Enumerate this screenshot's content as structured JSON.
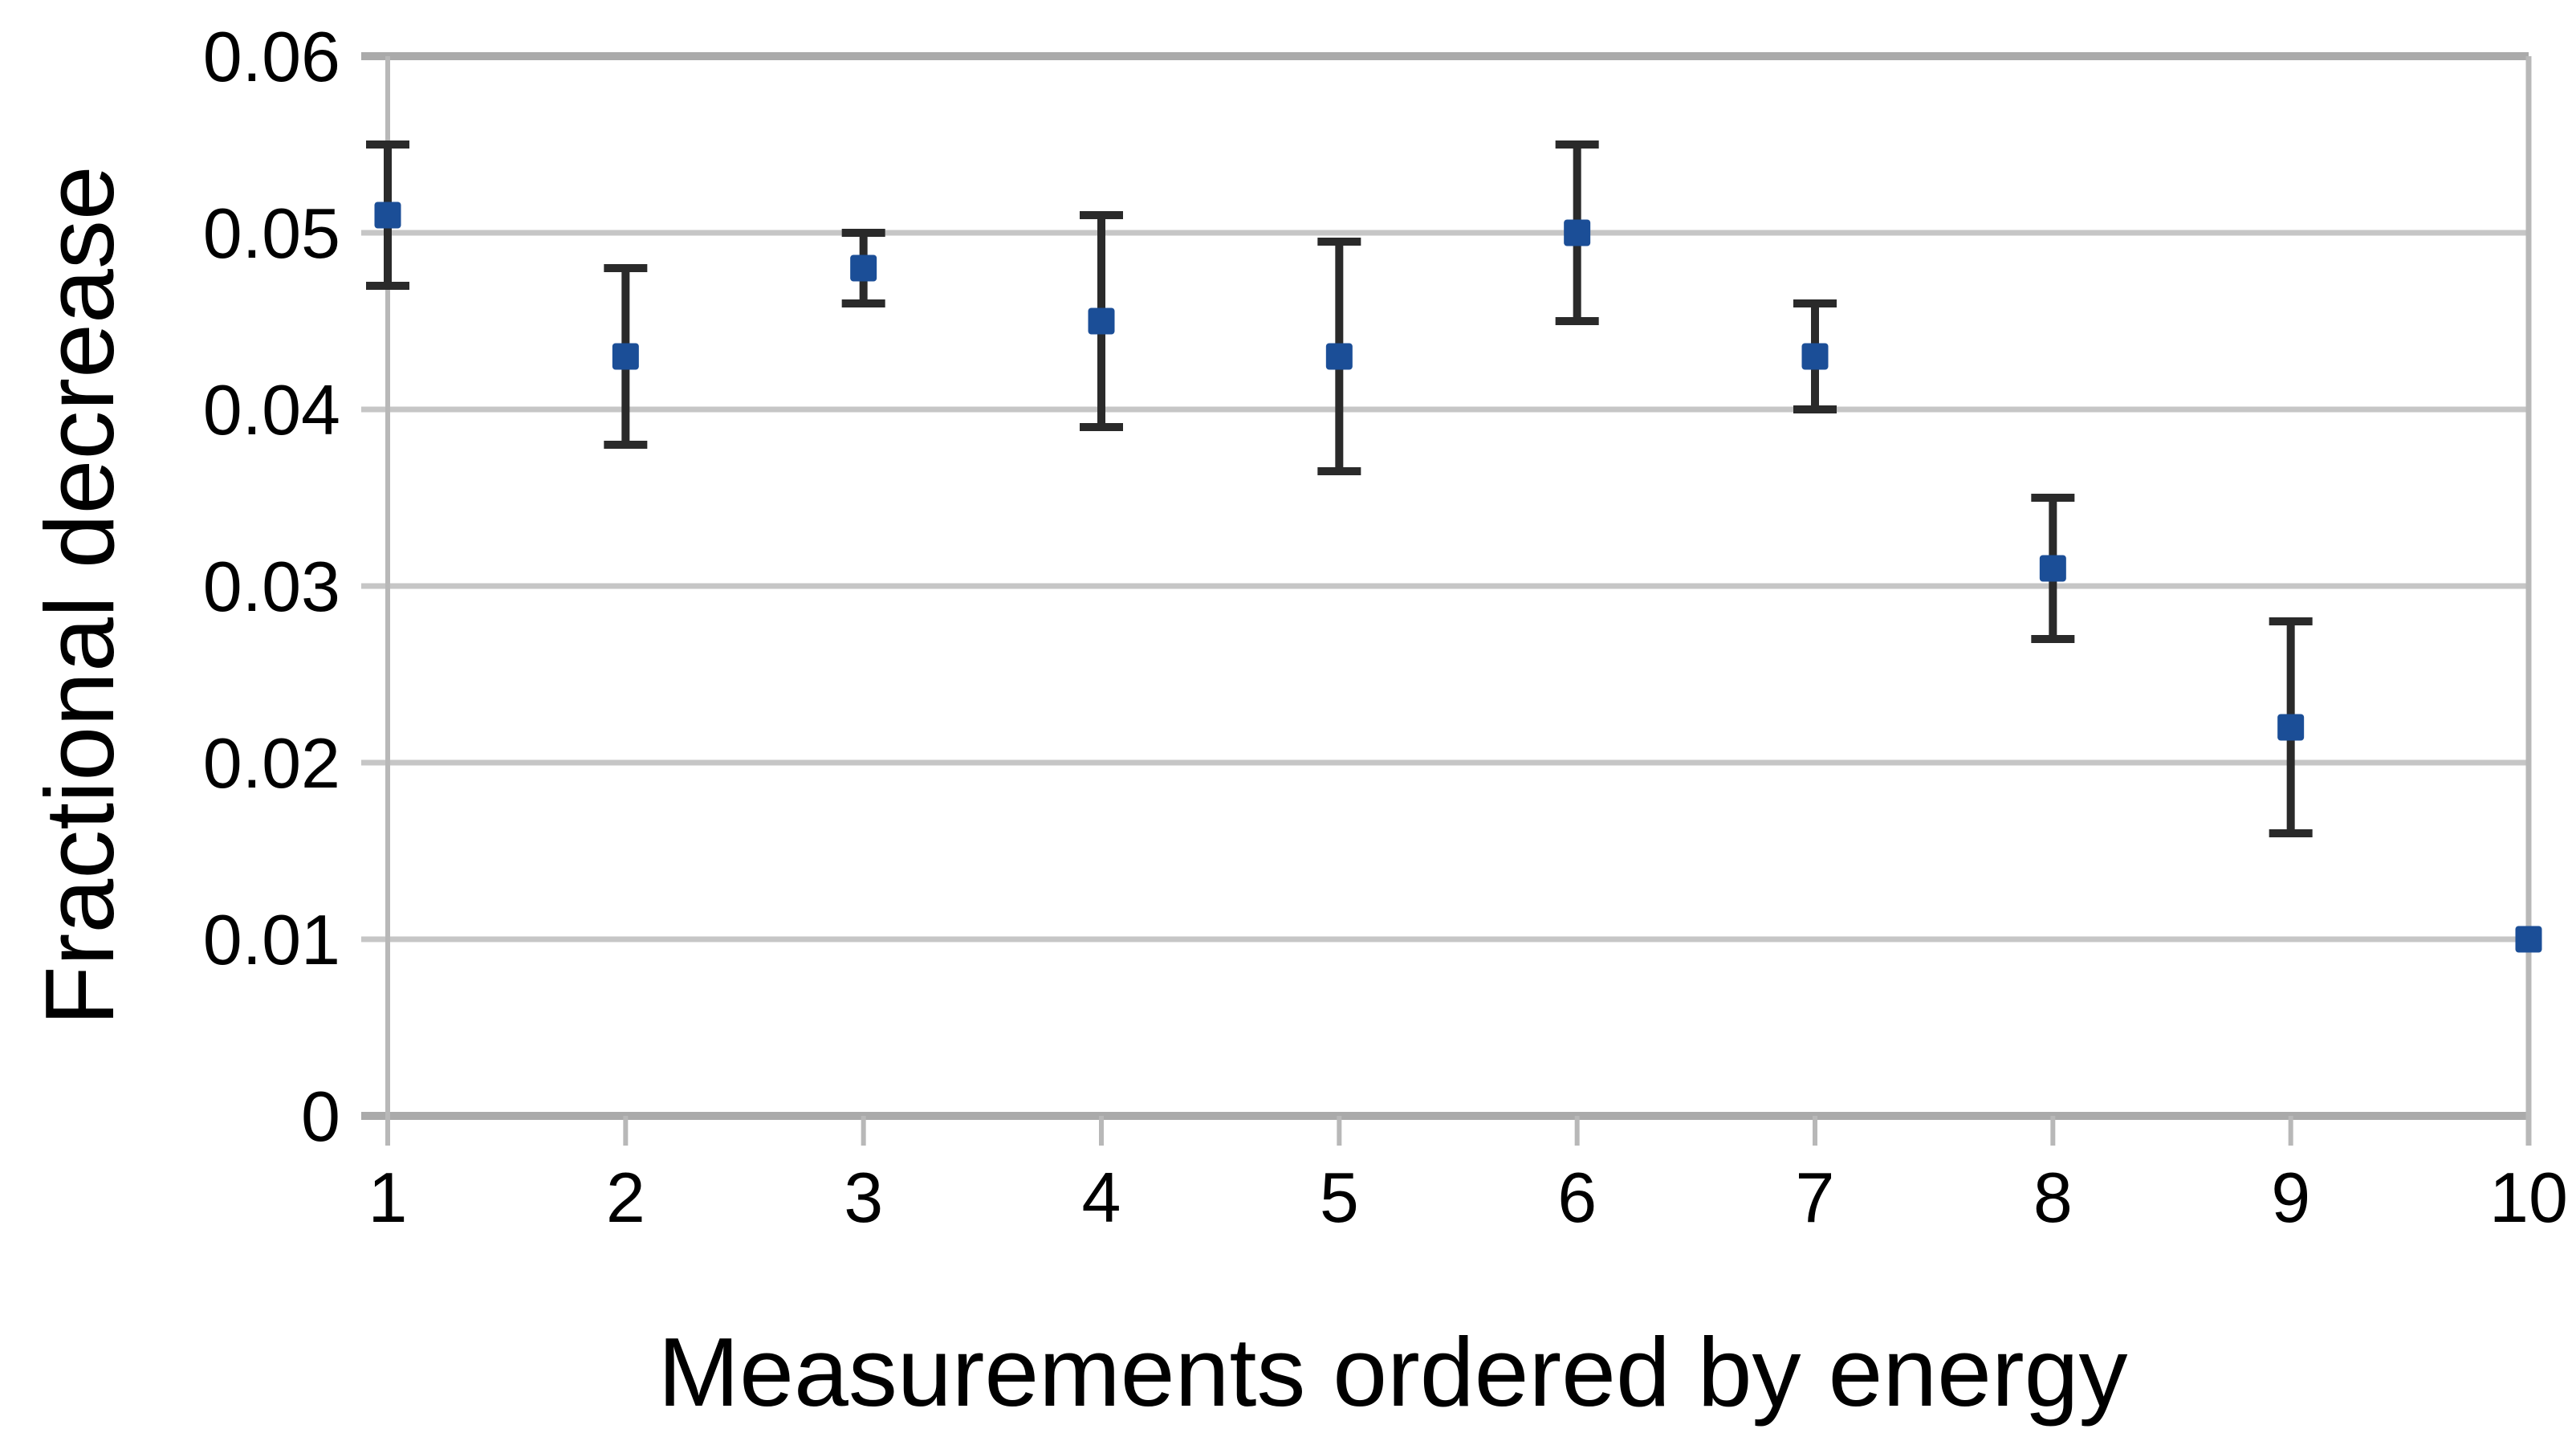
{
  "chart_data": {
    "type": "scatter",
    "title": "",
    "xlabel": "Measurements ordered by energy",
    "ylabel": "Fractional decrease",
    "x": [
      1,
      2,
      3,
      4,
      5,
      6,
      7,
      8,
      9,
      10
    ],
    "y": [
      0.051,
      0.043,
      0.048,
      0.045,
      0.043,
      0.05,
      0.043,
      0.031,
      0.022,
      0.01
    ],
    "y_err": [
      0.004,
      0.005,
      0.002,
      0.006,
      0.0065,
      0.005,
      0.003,
      0.004,
      0.006,
      0
    ],
    "y_upper": [
      0.055,
      0.048,
      0.05,
      0.051,
      0.0495,
      0.055,
      0.046,
      0.035,
      0.028,
      0.01
    ],
    "y_lower": [
      0.047,
      0.038,
      0.046,
      0.039,
      0.0365,
      0.045,
      0.04,
      0.027,
      0.016,
      0.01
    ],
    "x_tick_labels": [
      "1",
      "2",
      "3",
      "4",
      "5",
      "6",
      "7",
      "8",
      "9",
      "10"
    ],
    "y_tick_values": [
      0,
      0.01,
      0.02,
      0.03,
      0.04,
      0.05,
      0.06
    ],
    "y_tick_labels": [
      "0",
      "0.01",
      "0.02",
      "0.03",
      "0.04",
      "0.05",
      "0.06"
    ],
    "xlim": [
      1,
      10
    ],
    "ylim": [
      0,
      0.06
    ],
    "grid": true,
    "legend": false,
    "marker": "square",
    "error_bars": true
  },
  "style": {
    "marker_color": "#1b4e97",
    "error_bar_color": "#2a2a2a",
    "gridline_color": "#c6c6c6",
    "frame_color": "#aaaaaa",
    "axis_line_color": "#b8b8b8",
    "text_color": "#000000",
    "background_color": "#ffffff"
  }
}
